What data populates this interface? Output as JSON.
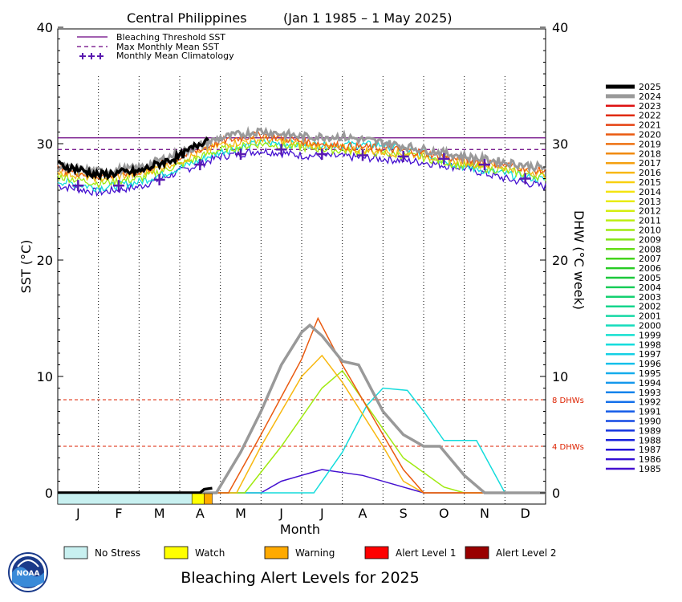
{
  "chart_data": {
    "type": "line",
    "title": "Central Philippines",
    "date_range": "(Jan 1 1985 – 1 May 2025)",
    "xlabel": "Month",
    "ylabel_left": "SST (°C)",
    "ylabel_right": "DHW (°C week)",
    "ylim": [
      0,
      40
    ],
    "y_ticks": [
      "0",
      "10",
      "20",
      "30",
      "40"
    ],
    "months": [
      "J",
      "F",
      "M",
      "A",
      "M",
      "J",
      "J",
      "A",
      "S",
      "O",
      "N",
      "D"
    ],
    "bleaching_threshold_sst": 30.5,
    "max_monthly_mean_sst": 29.5,
    "monthly_mean_climatology": [
      26.4,
      26.4,
      26.9,
      28.2,
      29.1,
      29.5,
      29.1,
      29.0,
      28.9,
      28.7,
      28.2,
      27.0
    ],
    "dhw_reference_lines": [
      {
        "value": 8,
        "label": "8 DHWs"
      },
      {
        "value": 4,
        "label": "4 DHWs"
      }
    ],
    "plot_legend": [
      "Bleaching Threshold SST",
      "Max Monthly Mean SST",
      "Monthly Mean Climatology"
    ],
    "years": [
      "2025",
      "2024",
      "2023",
      "2022",
      "2021",
      "2020",
      "2019",
      "2018",
      "2017",
      "2016",
      "2015",
      "2014",
      "2013",
      "2012",
      "2011",
      "2010",
      "2009",
      "2008",
      "2007",
      "2006",
      "2005",
      "2004",
      "2003",
      "2002",
      "2001",
      "2000",
      "1999",
      "1998",
      "1997",
      "1996",
      "1995",
      "1994",
      "1993",
      "1992",
      "1991",
      "1990",
      "1989",
      "1988",
      "1987",
      "1986",
      "1985"
    ],
    "year_colors": [
      "#000000",
      "#999999",
      "#dd1111",
      "#e02a0a",
      "#e54010",
      "#ea5a10",
      "#ee7010",
      "#f08a10",
      "#f4a010",
      "#f8b810",
      "#f8d010",
      "#f4e410",
      "#e8ec10",
      "#d4ee10",
      "#bcee10",
      "#a0ea10",
      "#84e414",
      "#64dc18",
      "#44d41c",
      "#28cc24",
      "#1cc83c",
      "#18cc58",
      "#14d070",
      "#14d48c",
      "#14d8a4",
      "#14dcbc",
      "#14e0d0",
      "#14dcdc",
      "#14d0e4",
      "#14c0ea",
      "#14acec",
      "#1498ec",
      "#1484ec",
      "#1470ea",
      "#145ce8",
      "#1448e4",
      "#1434e0",
      "#1820dc",
      "#2410d8",
      "#3410d4",
      "#4410d0"
    ],
    "series": [
      {
        "name": "2025",
        "sst": [
          [
            0,
            28.2
          ],
          [
            0.5,
            27.8
          ],
          [
            1.0,
            27.3
          ],
          [
            1.5,
            27.5
          ],
          [
            2.0,
            27.6
          ],
          [
            2.5,
            28.3
          ],
          [
            3.0,
            28.9
          ],
          [
            3.4,
            29.8
          ],
          [
            3.7,
            30.5
          ]
        ],
        "dhw": [
          [
            0,
            0
          ],
          [
            3.5,
            0
          ],
          [
            3.6,
            0.3
          ],
          [
            3.8,
            0.4
          ]
        ]
      },
      {
        "name": "2024",
        "sst": [
          [
            0,
            28.0
          ],
          [
            1.0,
            27.6
          ],
          [
            2.0,
            27.9
          ],
          [
            3.0,
            29.2
          ],
          [
            4.0,
            30.5
          ],
          [
            5.0,
            31.1
          ],
          [
            6.0,
            30.6
          ],
          [
            7.0,
            30.6
          ],
          [
            8.0,
            30.1
          ],
          [
            9.0,
            29.5
          ],
          [
            10.0,
            28.9
          ],
          [
            11.0,
            28.4
          ],
          [
            12.0,
            27.9
          ]
        ],
        "dhw": [
          [
            0,
            0
          ],
          [
            3.9,
            0
          ],
          [
            4.5,
            3.5
          ],
          [
            5.0,
            7.0
          ],
          [
            5.5,
            11.0
          ],
          [
            6.0,
            13.8
          ],
          [
            6.2,
            14.4
          ],
          [
            6.5,
            13.5
          ],
          [
            7.0,
            11.3
          ],
          [
            7.4,
            11.0
          ],
          [
            8.0,
            7.0
          ],
          [
            8.5,
            5.0
          ],
          [
            9.0,
            4.0
          ],
          [
            9.4,
            4.0
          ],
          [
            10.0,
            1.5
          ],
          [
            10.5,
            0
          ],
          [
            12.0,
            0
          ]
        ]
      },
      {
        "name": "2020",
        "sst": [
          [
            0,
            27.8
          ],
          [
            1.0,
            27.2
          ],
          [
            2.0,
            27.6
          ],
          [
            3.0,
            28.8
          ],
          [
            4.0,
            30.2
          ],
          [
            5.0,
            30.8
          ],
          [
            6.0,
            30.2
          ],
          [
            7.0,
            29.8
          ],
          [
            8.0,
            29.6
          ],
          [
            9.0,
            29.2
          ],
          [
            10.0,
            28.6
          ],
          [
            11.0,
            28.2
          ],
          [
            12.0,
            27.6
          ]
        ],
        "dhw": [
          [
            0,
            0
          ],
          [
            4.2,
            0
          ],
          [
            5.0,
            5.0
          ],
          [
            6.0,
            11.5
          ],
          [
            6.4,
            15.0
          ],
          [
            7.0,
            11.0
          ],
          [
            8.0,
            5.0
          ],
          [
            8.5,
            2.0
          ],
          [
            9.0,
            0
          ],
          [
            12.0,
            0
          ]
        ]
      },
      {
        "name": "2016",
        "sst": [
          [
            0,
            27.6
          ],
          [
            1.0,
            27.0
          ],
          [
            2.0,
            27.4
          ],
          [
            3.0,
            28.5
          ],
          [
            4.0,
            29.9
          ],
          [
            5.0,
            30.4
          ],
          [
            6.0,
            30.0
          ],
          [
            7.0,
            29.6
          ],
          [
            8.0,
            29.3
          ],
          [
            9.0,
            29.0
          ],
          [
            10.0,
            28.4
          ],
          [
            11.0,
            28.0
          ],
          [
            12.0,
            27.4
          ]
        ],
        "dhw": [
          [
            0,
            0
          ],
          [
            4.4,
            0
          ],
          [
            5.0,
            4.0
          ],
          [
            6.0,
            10.0
          ],
          [
            6.5,
            11.8
          ],
          [
            7.0,
            9.5
          ],
          [
            8.0,
            4.0
          ],
          [
            8.5,
            1.0
          ],
          [
            9.0,
            0
          ],
          [
            12.0,
            0
          ]
        ]
      },
      {
        "name": "2010",
        "sst": [
          [
            0,
            27.2
          ],
          [
            1.0,
            26.6
          ],
          [
            2.0,
            27.0
          ],
          [
            3.0,
            28.2
          ],
          [
            4.0,
            29.5
          ],
          [
            5.0,
            30.0
          ],
          [
            6.0,
            29.7
          ],
          [
            7.0,
            29.4
          ],
          [
            8.0,
            29.2
          ],
          [
            9.0,
            28.8
          ],
          [
            10.0,
            28.1
          ],
          [
            11.0,
            27.7
          ],
          [
            12.0,
            27.1
          ]
        ],
        "dhw": [
          [
            0,
            0
          ],
          [
            4.6,
            0
          ],
          [
            5.5,
            4.0
          ],
          [
            6.5,
            9.0
          ],
          [
            7.0,
            10.5
          ],
          [
            7.5,
            8.0
          ],
          [
            8.5,
            3.0
          ],
          [
            9.5,
            0.5
          ],
          [
            10.0,
            0
          ],
          [
            12.0,
            0
          ]
        ]
      },
      {
        "name": "1998",
        "sst": [
          [
            0,
            26.8
          ],
          [
            1.0,
            26.2
          ],
          [
            2.0,
            26.7
          ],
          [
            3.0,
            27.9
          ],
          [
            4.0,
            29.3
          ],
          [
            5.0,
            30.1
          ],
          [
            6.0,
            29.9
          ],
          [
            7.0,
            29.9
          ],
          [
            8.0,
            29.9
          ],
          [
            9.0,
            29.1
          ],
          [
            10.0,
            28.0
          ],
          [
            11.0,
            27.4
          ],
          [
            12.0,
            26.9
          ]
        ],
        "dhw": [
          [
            0,
            0
          ],
          [
            6.3,
            0
          ],
          [
            7.0,
            3.5
          ],
          [
            7.6,
            7.5
          ],
          [
            8.0,
            9.0
          ],
          [
            8.6,
            8.8
          ],
          [
            9.0,
            7.0
          ],
          [
            9.5,
            4.5
          ],
          [
            10.3,
            4.5
          ],
          [
            11.0,
            0
          ],
          [
            12.0,
            0
          ]
        ]
      },
      {
        "name": "1985",
        "sst": [
          [
            0,
            26.4
          ],
          [
            1.0,
            25.8
          ],
          [
            2.0,
            26.3
          ],
          [
            3.0,
            27.6
          ],
          [
            4.0,
            28.9
          ],
          [
            5.0,
            29.4
          ],
          [
            6.0,
            29.0
          ],
          [
            7.0,
            28.9
          ],
          [
            8.0,
            28.7
          ],
          [
            9.0,
            28.4
          ],
          [
            10.0,
            27.9
          ],
          [
            11.0,
            27.0
          ],
          [
            12.0,
            26.3
          ]
        ],
        "dhw": [
          [
            0,
            0
          ],
          [
            5.0,
            0
          ],
          [
            5.5,
            1.0
          ],
          [
            6.5,
            2.0
          ],
          [
            7.5,
            1.5
          ],
          [
            8.5,
            0.5
          ],
          [
            9.0,
            0
          ],
          [
            12.0,
            0
          ]
        ]
      }
    ],
    "current_alert_bar": [
      {
        "level": "No Stress",
        "from": 0,
        "to": 3.3
      },
      {
        "level": "Watch",
        "from": 3.3,
        "to": 3.6
      },
      {
        "level": "Warning",
        "from": 3.6,
        "to": 3.8
      }
    ]
  },
  "alert_levels": [
    {
      "label": "No Stress",
      "color": "#c8f0f0"
    },
    {
      "label": "Watch",
      "color": "#ffff00"
    },
    {
      "label": "Warning",
      "color": "#ffaa00"
    },
    {
      "label": "Alert Level 1",
      "color": "#ff0000"
    },
    {
      "label": "Alert Level 2",
      "color": "#990000"
    }
  ],
  "footer": {
    "title": "Bleaching Alert Levels for 2025",
    "logo_text": "NOAA",
    "logo_icon": "noaa-logo-icon"
  }
}
